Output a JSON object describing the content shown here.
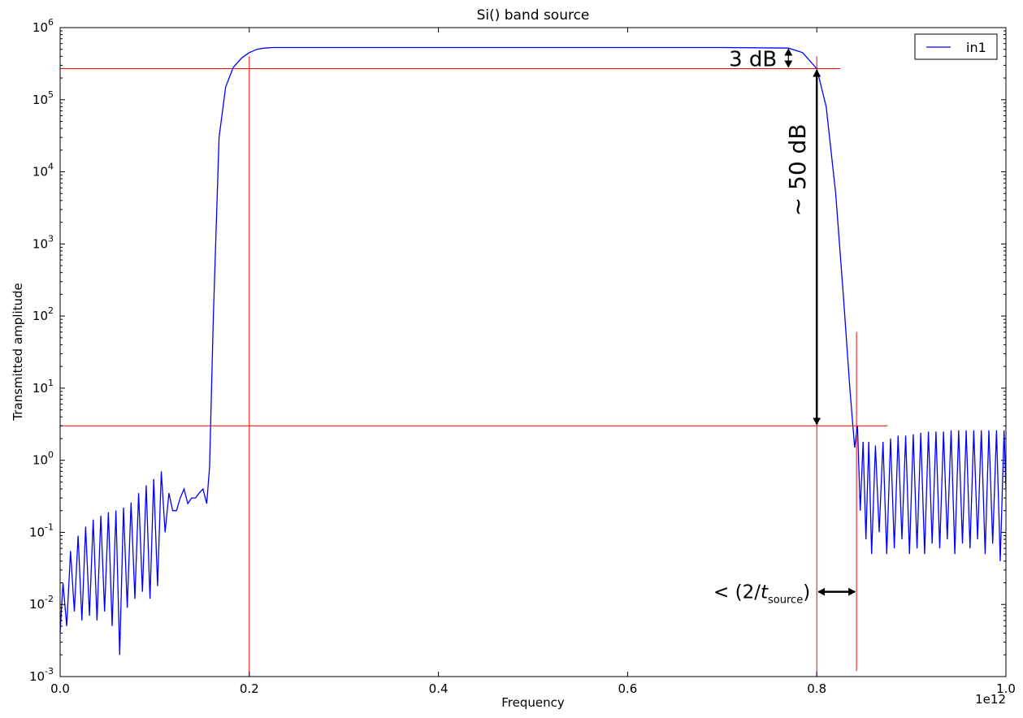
{
  "chart_data": {
    "type": "line",
    "title": "Si() band source",
    "xlabel": "Frequency",
    "ylabel": "Transmitted amplitude",
    "x_offset_label": "1e12",
    "xlim": [
      0.0,
      1.0
    ],
    "ylim": [
      0.001,
      1000000
    ],
    "yscale": "log",
    "x_ticks": [
      "0.0",
      "0.2",
      "0.4",
      "0.6",
      "0.8",
      "1.0"
    ],
    "y_ticks": [
      {
        "base": "10",
        "exp": "-3"
      },
      {
        "base": "10",
        "exp": "-2"
      },
      {
        "base": "10",
        "exp": "-1"
      },
      {
        "base": "10",
        "exp": "0"
      },
      {
        "base": "10",
        "exp": "1"
      },
      {
        "base": "10",
        "exp": "2"
      },
      {
        "base": "10",
        "exp": "3"
      },
      {
        "base": "10",
        "exp": "4"
      },
      {
        "base": "10",
        "exp": "5"
      },
      {
        "base": "10",
        "exp": "6"
      }
    ],
    "legend": {
      "placement": "top-right",
      "entries": [
        {
          "label": "in1",
          "color": "#0000ff"
        }
      ]
    },
    "series": [
      {
        "name": "in1",
        "color": "#0000ff",
        "x": [
          0.0,
          0.003,
          0.007,
          0.011,
          0.015,
          0.019,
          0.023,
          0.027,
          0.031,
          0.035,
          0.039,
          0.043,
          0.047,
          0.051,
          0.055,
          0.059,
          0.063,
          0.067,
          0.071,
          0.075,
          0.079,
          0.083,
          0.087,
          0.091,
          0.095,
          0.099,
          0.103,
          0.107,
          0.111,
          0.115,
          0.119,
          0.123,
          0.127,
          0.131,
          0.135,
          0.139,
          0.143,
          0.147,
          0.151,
          0.155,
          0.158,
          0.162,
          0.168,
          0.175,
          0.183,
          0.192,
          0.2,
          0.208,
          0.216,
          0.225,
          0.24,
          0.3,
          0.5,
          0.7,
          0.77,
          0.785,
          0.8,
          0.81,
          0.82,
          0.828,
          0.835,
          0.84,
          0.843,
          0.846,
          0.849,
          0.852,
          0.855,
          0.858,
          0.862,
          0.866,
          0.87,
          0.874,
          0.878,
          0.882,
          0.886,
          0.89,
          0.894,
          0.898,
          0.902,
          0.906,
          0.91,
          0.914,
          0.918,
          0.922,
          0.926,
          0.93,
          0.934,
          0.938,
          0.942,
          0.946,
          0.95,
          0.954,
          0.958,
          0.962,
          0.966,
          0.97,
          0.974,
          0.978,
          0.982,
          0.986,
          0.99,
          0.994,
          0.998,
          1.0
        ],
        "y": [
          0.004,
          0.02,
          0.005,
          0.055,
          0.008,
          0.09,
          0.006,
          0.12,
          0.007,
          0.15,
          0.006,
          0.17,
          0.008,
          0.19,
          0.005,
          0.2,
          0.002,
          0.22,
          0.009,
          0.26,
          0.012,
          0.35,
          0.015,
          0.45,
          0.012,
          0.55,
          0.018,
          0.7,
          0.1,
          0.35,
          0.2,
          0.2,
          0.3,
          0.4,
          0.25,
          0.3,
          0.3,
          0.35,
          0.4,
          0.25,
          0.8,
          100,
          30000,
          150000,
          280000,
          380000,
          450000,
          500000,
          520000,
          530000,
          530000,
          530000,
          530000,
          530000,
          520000,
          450000,
          270000,
          80000,
          5000,
          200,
          10,
          1.5,
          3.0,
          0.2,
          1.8,
          0.08,
          1.8,
          0.05,
          1.6,
          0.1,
          1.8,
          0.05,
          2.0,
          0.06,
          2.2,
          0.08,
          2.2,
          0.05,
          2.3,
          0.06,
          2.4,
          0.05,
          2.5,
          0.07,
          2.5,
          0.06,
          2.5,
          0.08,
          2.6,
          0.05,
          2.6,
          0.07,
          2.6,
          0.06,
          2.6,
          0.08,
          2.6,
          0.05,
          2.6,
          0.07,
          2.6,
          0.04,
          2.6,
          0.4
        ]
      }
    ],
    "reference_lines": {
      "color": "#ff0000",
      "horizontal": [
        {
          "y": 270000,
          "x_from": 0.0,
          "x_to": 0.825
        },
        {
          "y": 3.0,
          "x_from": 0.0,
          "x_to": 0.875
        }
      ],
      "vertical": [
        {
          "x": 0.2,
          "y_from": 0.001,
          "y_to": 400000
        },
        {
          "x": 0.8,
          "y_from": 0.001,
          "y_to": 400000
        },
        {
          "x": 0.842,
          "y_from": 0.0012,
          "y_to": 60
        }
      ]
    },
    "annotations": [
      {
        "text": "3 dB",
        "kind": "vertical-double-arrow",
        "x": 0.77,
        "y_from": 270000,
        "y_to": 530000
      },
      {
        "text": "~ 50 dB",
        "kind": "vertical-double-arrow",
        "x": 0.8,
        "y_from": 3.0,
        "y_to": 270000
      },
      {
        "text_prefix": "< (2/",
        "text_italic": "t",
        "text_sub": "source",
        "text_suffix": ")",
        "kind": "horizontal-double-arrow",
        "y": 0.015,
        "x_from": 0.8,
        "x_to": 0.842
      }
    ]
  }
}
